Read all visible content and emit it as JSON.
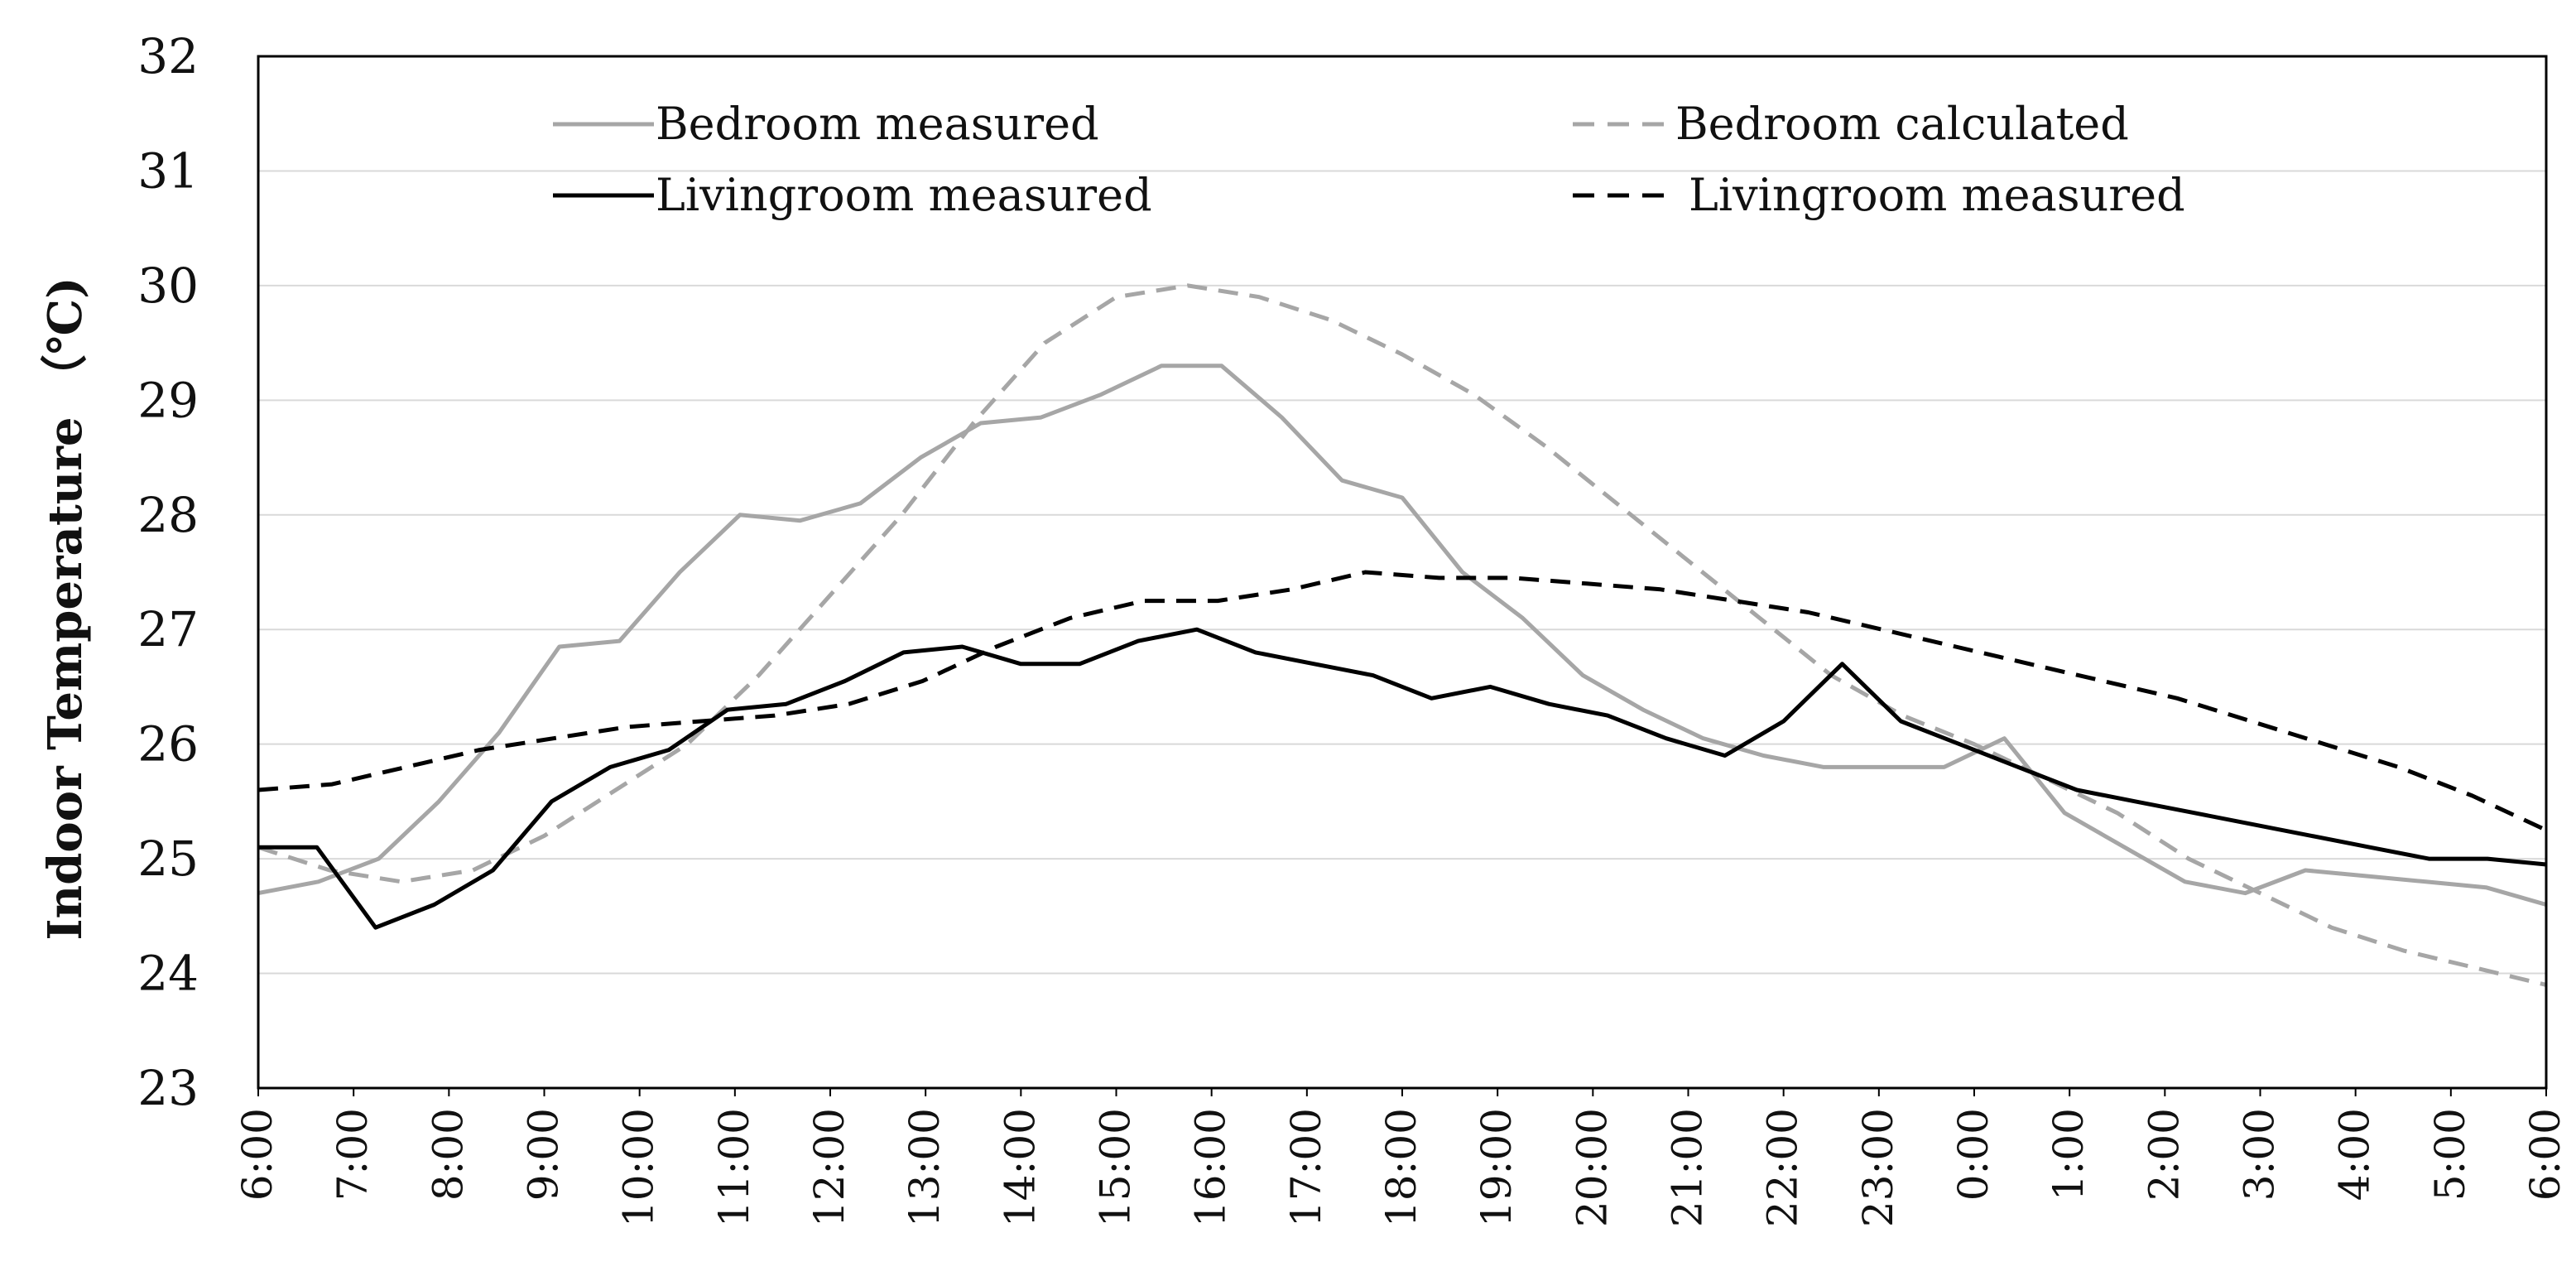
{
  "chart_data": {
    "type": "line",
    "title": "",
    "xlabel": "",
    "ylabel": "Indoor Temperature （℃)",
    "ylim": [
      23,
      32
    ],
    "yticks": [
      23,
      24,
      25,
      26,
      27,
      28,
      29,
      30,
      31,
      32
    ],
    "grid": true,
    "legend_position": "top",
    "x_ticks": [
      "6:00",
      "7:00",
      "8:00",
      "9:00",
      "10:00",
      "11:00",
      "12:00",
      "13:00",
      "14:00",
      "15:00",
      "16:00",
      "17:00",
      "18:00",
      "19:00",
      "20:00",
      "21:00",
      "22:00",
      "23:00",
      "0:00",
      "1:00",
      "2:00",
      "3:00",
      "4:00",
      "5:00",
      "6:00"
    ],
    "x_hours": [
      0,
      0.5,
      1,
      1.5,
      2,
      2.5,
      3,
      3.5,
      4,
      4.5,
      5,
      5.5,
      6,
      6.5,
      7,
      7.5,
      8,
      8.5,
      9,
      9.5,
      10,
      10.5,
      11,
      11.5,
      12,
      12.5,
      13,
      13.5,
      14,
      14.5,
      15,
      15.5,
      16,
      16.5,
      17,
      17.5,
      18,
      18.5,
      19,
      19.5,
      20,
      20.5,
      21,
      21.5,
      22,
      22.5,
      23,
      23.5,
      24
    ],
    "series": [
      {
        "name": "Bedroom measured",
        "color": "#a6a6a6",
        "dash": "solid",
        "values": [
          24.7,
          24.8,
          25.0,
          25.5,
          26.1,
          26.85,
          26.9,
          27.5,
          28.0,
          27.95,
          28.1,
          28.5,
          28.8,
          28.85,
          29.05,
          29.3,
          29.3,
          28.85,
          28.3,
          28.15,
          27.5,
          27.1,
          26.6,
          26.3,
          26.05,
          25.9,
          25.8,
          25.8,
          25.8,
          26.05,
          25.4,
          25.1,
          24.8,
          24.7,
          24.9,
          24.85,
          24.8,
          24.75,
          24.6
        ]
      },
      {
        "name": "Bedroom calculated",
        "color": "#a6a6a6",
        "dash": "dashed",
        "values": [
          25.1,
          24.9,
          24.8,
          24.9,
          25.2,
          25.6,
          26.0,
          26.6,
          27.3,
          28.0,
          28.8,
          29.5,
          29.9,
          30.0,
          29.9,
          29.7,
          29.4,
          29.05,
          28.6,
          28.1,
          27.6,
          27.1,
          26.6,
          26.25,
          26.0,
          25.7,
          25.4,
          25.0,
          24.7,
          24.4,
          24.2,
          24.05,
          23.9
        ]
      },
      {
        "name": "Livingroom measured",
        "color": "#000000",
        "dash": "solid",
        "values": [
          25.1,
          25.1,
          24.4,
          24.6,
          24.9,
          25.5,
          25.8,
          25.95,
          26.3,
          26.35,
          26.55,
          26.8,
          26.85,
          26.7,
          26.7,
          26.9,
          27.0,
          26.8,
          26.7,
          26.6,
          26.4,
          26.5,
          26.35,
          26.25,
          26.05,
          25.9,
          26.2,
          26.7,
          26.2,
          26.0,
          25.8,
          25.6,
          25.5,
          25.4,
          25.3,
          25.2,
          25.1,
          25.0,
          25.0,
          24.95
        ]
      },
      {
        "name": "Livingroom measured",
        "color": "#000000",
        "dash": "dashed",
        "values": [
          25.6,
          25.65,
          25.8,
          25.95,
          26.05,
          26.15,
          26.2,
          26.25,
          26.35,
          26.55,
          26.85,
          27.1,
          27.25,
          27.25,
          27.35,
          27.5,
          27.45,
          27.45,
          27.4,
          27.35,
          27.25,
          27.15,
          27.0,
          26.85,
          26.7,
          26.55,
          26.4,
          26.2,
          26.0,
          25.8,
          25.55,
          25.25
        ]
      }
    ]
  }
}
